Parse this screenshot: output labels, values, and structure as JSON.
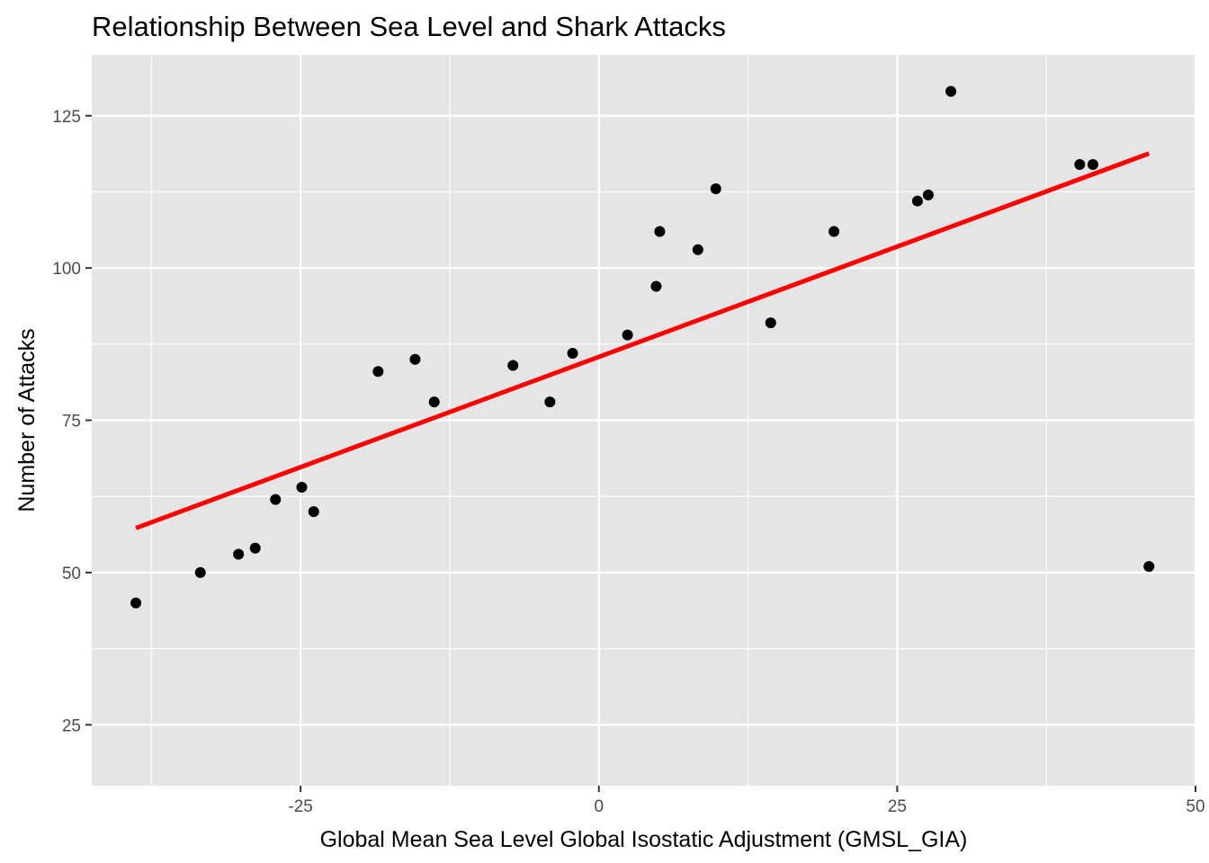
{
  "chart_data": {
    "type": "scatter",
    "title": "Relationship Between Sea Level and Shark Attacks",
    "xlabel": "Global Mean Sea Level Global Isostatic Adjustment (GMSL_GIA)",
    "ylabel": "Number of Attacks",
    "xlim": [
      -42.5,
      50
    ],
    "ylim": [
      15,
      135
    ],
    "x_ticks": [
      -25,
      0,
      25,
      50
    ],
    "x_tick_labels": [
      "-25",
      "0",
      "25",
      "50"
    ],
    "y_ticks": [
      25,
      50,
      75,
      100,
      125
    ],
    "y_tick_labels": [
      "25",
      "50",
      "75",
      "100",
      "125"
    ],
    "grid": true,
    "legend": "none",
    "series": [
      {
        "type": "points",
        "color": "#000000",
        "points": [
          [
            -38.8,
            45
          ],
          [
            -33.4,
            50
          ],
          [
            -30.2,
            53
          ],
          [
            -28.8,
            54
          ],
          [
            -27.1,
            62
          ],
          [
            -24.9,
            64
          ],
          [
            -23.9,
            60
          ],
          [
            -18.5,
            83
          ],
          [
            -15.4,
            85
          ],
          [
            -13.8,
            78
          ],
          [
            -7.2,
            84
          ],
          [
            -4.1,
            78
          ],
          [
            -2.2,
            86
          ],
          [
            2.4,
            89
          ],
          [
            4.8,
            97
          ],
          [
            5.1,
            106
          ],
          [
            8.3,
            103
          ],
          [
            9.8,
            113
          ],
          [
            14.4,
            91
          ],
          [
            19.7,
            106
          ],
          [
            26.7,
            111
          ],
          [
            27.6,
            112
          ],
          [
            29.5,
            129
          ],
          [
            40.3,
            117
          ],
          [
            41.4,
            117
          ],
          [
            46.1,
            51
          ]
        ]
      },
      {
        "type": "regression_line",
        "color": "#ff0000",
        "points": [
          [
            -38.8,
            57.3
          ],
          [
            46.1,
            118.8
          ]
        ]
      }
    ]
  }
}
